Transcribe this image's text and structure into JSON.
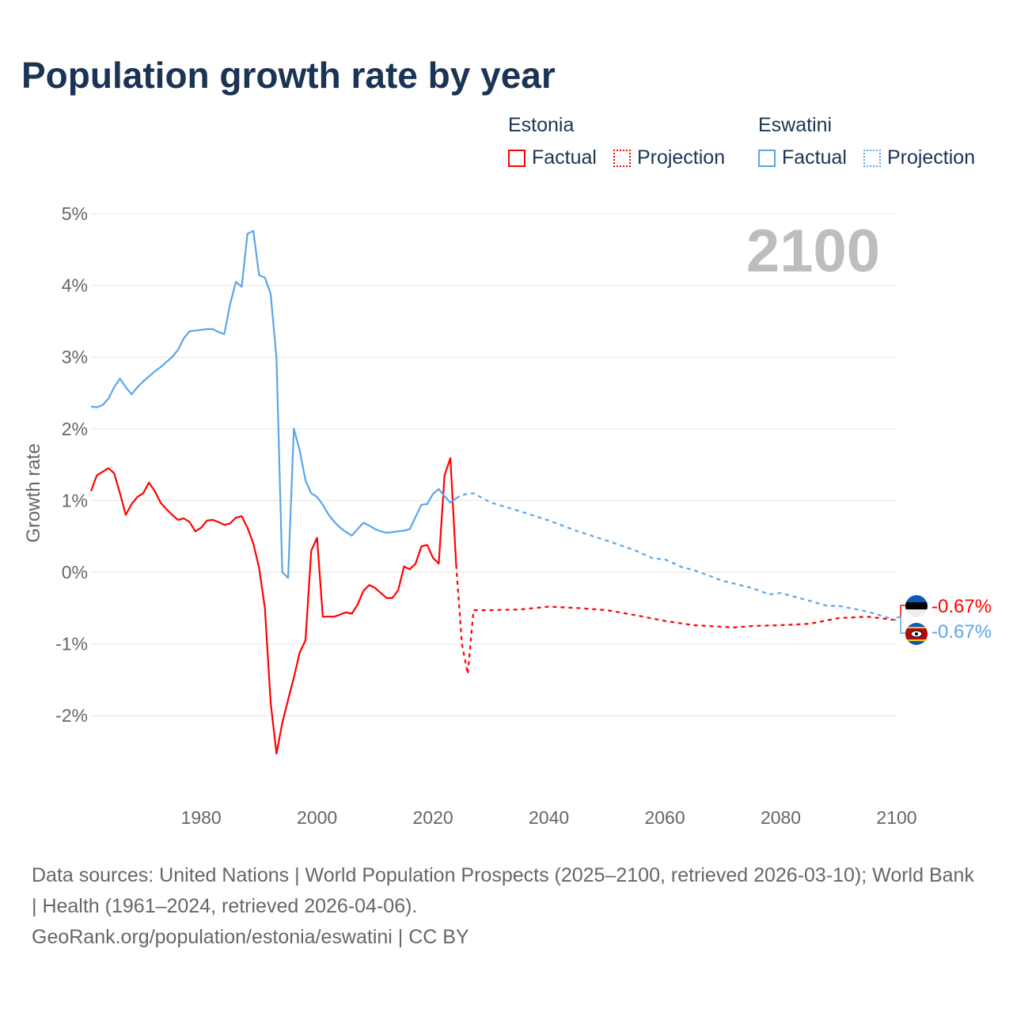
{
  "title": "Population growth rate by year",
  "legend": {
    "groups": [
      {
        "country": "Estonia",
        "factual": "Factual",
        "projection": "Projection",
        "color": "#ff0000"
      },
      {
        "country": "Eswatini",
        "factual": "Factual",
        "projection": "Projection",
        "color": "#5aa5ea"
      }
    ]
  },
  "year_watermark": "2100",
  "end_labels": {
    "estonia": "-0.67%",
    "eswatini": "-0.67%"
  },
  "footer": {
    "sources": "Data sources: United Nations | World Population Prospects (2025–2100, retrieved 2026-03-10); World Bank | Health (1961–2024, retrieved 2026-04-06).",
    "credit": "GeoRank.org/population/estonia/eswatini | CC BY"
  },
  "chart_data": {
    "type": "line",
    "title": "Population growth rate by year",
    "xlabel": "",
    "ylabel": "Growth rate",
    "xlim": [
      1961,
      2100
    ],
    "ylim": [
      -3,
      5
    ],
    "x_ticks": [
      1980,
      2000,
      2020,
      2040,
      2060,
      2080,
      2100
    ],
    "x_tick_labels": [
      "1980",
      "2000",
      "2020",
      "2040",
      "2060",
      "2080",
      "2100"
    ],
    "y_ticks": [
      5,
      4,
      3,
      2,
      1,
      0,
      -1,
      -2
    ],
    "y_tick_labels": [
      "5%",
      "4%",
      "3%",
      "2%",
      "1%",
      "0%",
      "-1%",
      "-2%"
    ],
    "grid": true,
    "legend_position": "top-right",
    "series": [
      {
        "name": "Estonia Factual",
        "color": "#ff0000",
        "style": "solid",
        "x": [
          1961,
          1962,
          1963,
          1964,
          1965,
          1966,
          1967,
          1968,
          1969,
          1970,
          1971,
          1972,
          1973,
          1974,
          1975,
          1976,
          1977,
          1978,
          1979,
          1980,
          1981,
          1982,
          1983,
          1984,
          1985,
          1986,
          1987,
          1988,
          1989,
          1990,
          1991,
          1992,
          1993,
          1994,
          1995,
          1996,
          1997,
          1998,
          1999,
          2000,
          2001,
          2002,
          2003,
          2004,
          2005,
          2006,
          2007,
          2008,
          2009,
          2010,
          2011,
          2012,
          2013,
          2014,
          2015,
          2016,
          2017,
          2018,
          2019,
          2020,
          2021,
          2022,
          2023,
          2024
        ],
        "y": [
          1.13,
          1.35,
          1.4,
          1.45,
          1.38,
          1.1,
          0.8,
          0.95,
          1.05,
          1.1,
          1.25,
          1.13,
          0.97,
          0.88,
          0.8,
          0.73,
          0.75,
          0.7,
          0.57,
          0.62,
          0.72,
          0.73,
          0.7,
          0.66,
          0.68,
          0.76,
          0.78,
          0.62,
          0.4,
          0.06,
          -0.5,
          -1.82,
          -2.53,
          -2.1,
          -1.78,
          -1.47,
          -1.12,
          -0.95,
          0.3,
          0.48,
          -0.62,
          -0.62,
          -0.62,
          -0.59,
          -0.56,
          -0.58,
          -0.45,
          -0.26,
          -0.18,
          -0.22,
          -0.29,
          -0.36,
          -0.36,
          -0.25,
          0.08,
          0.04,
          0.12,
          0.36,
          0.38,
          0.2,
          0.12,
          1.35,
          1.59,
          0.1
        ]
      },
      {
        "name": "Estonia Projection",
        "color": "#ff0000",
        "style": "dotted",
        "x": [
          2024,
          2025,
          2026,
          2027,
          2028,
          2030,
          2035,
          2040,
          2045,
          2050,
          2055,
          2060,
          2065,
          2070,
          2072,
          2075,
          2080,
          2085,
          2090,
          2095,
          2100
        ],
        "y": [
          0.1,
          -1.0,
          -1.42,
          -0.53,
          -0.53,
          -0.53,
          -0.52,
          -0.48,
          -0.5,
          -0.53,
          -0.6,
          -0.68,
          -0.74,
          -0.76,
          -0.77,
          -0.75,
          -0.74,
          -0.72,
          -0.64,
          -0.62,
          -0.67
        ]
      },
      {
        "name": "Eswatini Factual",
        "color": "#5aa5ea",
        "style": "solid",
        "x": [
          1961,
          1962,
          1963,
          1964,
          1965,
          1966,
          1967,
          1968,
          1969,
          1970,
          1971,
          1972,
          1973,
          1974,
          1975,
          1976,
          1977,
          1978,
          1979,
          1980,
          1981,
          1982,
          1983,
          1984,
          1985,
          1986,
          1987,
          1988,
          1989,
          1990,
          1991,
          1992,
          1993,
          1994,
          1995,
          1996,
          1997,
          1998,
          1999,
          2000,
          2001,
          2002,
          2003,
          2004,
          2005,
          2006,
          2007,
          2008,
          2009,
          2010,
          2011,
          2012,
          2013,
          2014,
          2015,
          2016,
          2017,
          2018,
          2019,
          2020,
          2021,
          2022,
          2023,
          2024
        ],
        "y": [
          2.31,
          2.3,
          2.33,
          2.42,
          2.58,
          2.7,
          2.58,
          2.48,
          2.58,
          2.66,
          2.73,
          2.8,
          2.86,
          2.93,
          3.0,
          3.1,
          3.26,
          3.36,
          3.37,
          3.38,
          3.39,
          3.39,
          3.35,
          3.32,
          3.74,
          4.05,
          3.98,
          4.72,
          4.76,
          4.14,
          4.11,
          3.88,
          2.98,
          0.0,
          -0.08,
          2.0,
          1.7,
          1.28,
          1.1,
          1.05,
          0.94,
          0.8,
          0.7,
          0.62,
          0.56,
          0.51,
          0.6,
          0.69,
          0.65,
          0.6,
          0.57,
          0.55,
          0.56,
          0.57,
          0.58,
          0.6,
          0.77,
          0.94,
          0.95,
          1.09,
          1.16,
          1.06,
          0.97,
          1.03
        ]
      },
      {
        "name": "Eswatini Projection",
        "color": "#5aa5ea",
        "style": "dotted",
        "x": [
          2024,
          2025,
          2027,
          2030,
          2033,
          2035,
          2040,
          2045,
          2050,
          2055,
          2058,
          2060,
          2063,
          2065,
          2070,
          2075,
          2078,
          2080,
          2085,
          2088,
          2090,
          2095,
          2100
        ],
        "y": [
          1.03,
          1.08,
          1.1,
          0.97,
          0.9,
          0.85,
          0.72,
          0.57,
          0.44,
          0.3,
          0.19,
          0.18,
          0.07,
          0.03,
          -0.12,
          -0.22,
          -0.31,
          -0.29,
          -0.4,
          -0.47,
          -0.47,
          -0.55,
          -0.67
        ]
      }
    ]
  }
}
